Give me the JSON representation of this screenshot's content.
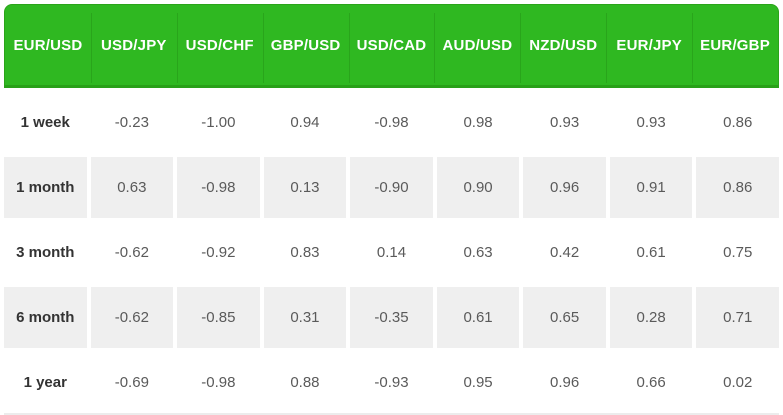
{
  "colors": {
    "header_bg": "#2fb821",
    "header_border": "#2aa41a",
    "header_divider": "#29a51b",
    "header_text": "#ffffff",
    "row_bg": "#ffffff",
    "row_alt_bg": "#efefef",
    "label_text": "#333333",
    "value_text": "#5a5a5a"
  },
  "table": {
    "header": [
      "EUR/USD",
      "USD/JPY",
      "USD/CHF",
      "GBP/USD",
      "USD/CAD",
      "AUD/USD",
      "NZD/USD",
      "EUR/JPY",
      "EUR/GBP"
    ],
    "rows": [
      {
        "label": "1 week",
        "values": [
          "-0.23",
          "-1.00",
          "0.94",
          "-0.98",
          "0.98",
          "0.93",
          "0.93",
          "0.86"
        ]
      },
      {
        "label": "1 month",
        "values": [
          "0.63",
          "-0.98",
          "0.13",
          "-0.90",
          "0.90",
          "0.96",
          "0.91",
          "0.86"
        ]
      },
      {
        "label": "3 month",
        "values": [
          "-0.62",
          "-0.92",
          "0.83",
          "0.14",
          "0.63",
          "0.42",
          "0.61",
          "0.75"
        ]
      },
      {
        "label": "6 month",
        "values": [
          "-0.62",
          "-0.85",
          "0.31",
          "-0.35",
          "0.61",
          "0.65",
          "0.28",
          "0.71"
        ]
      },
      {
        "label": "1 year",
        "values": [
          "-0.69",
          "-0.98",
          "0.88",
          "-0.93",
          "0.95",
          "0.96",
          "0.66",
          "0.02"
        ]
      }
    ]
  },
  "chart_data": {
    "type": "table",
    "title": "Currency pair correlation table (vs EUR/USD) by timeframe",
    "columns": [
      "EUR/USD",
      "USD/JPY",
      "USD/CHF",
      "GBP/USD",
      "USD/CAD",
      "AUD/USD",
      "NZD/USD",
      "EUR/JPY",
      "EUR/GBP"
    ],
    "rows": [
      {
        "period": "1 week",
        "values": [
          -0.23,
          -1.0,
          0.94,
          -0.98,
          0.98,
          0.93,
          0.93,
          0.86
        ]
      },
      {
        "period": "1 month",
        "values": [
          0.63,
          -0.98,
          0.13,
          -0.9,
          0.9,
          0.96,
          0.91,
          0.86
        ]
      },
      {
        "period": "3 month",
        "values": [
          -0.62,
          -0.92,
          0.83,
          0.14,
          0.63,
          0.42,
          0.61,
          0.75
        ]
      },
      {
        "period": "6 month",
        "values": [
          -0.62,
          -0.85,
          0.31,
          -0.35,
          0.61,
          0.65,
          0.28,
          0.71
        ]
      },
      {
        "period": "1 year",
        "values": [
          -0.69,
          -0.98,
          0.88,
          -0.93,
          0.95,
          0.96,
          0.66,
          0.02
        ]
      }
    ]
  }
}
